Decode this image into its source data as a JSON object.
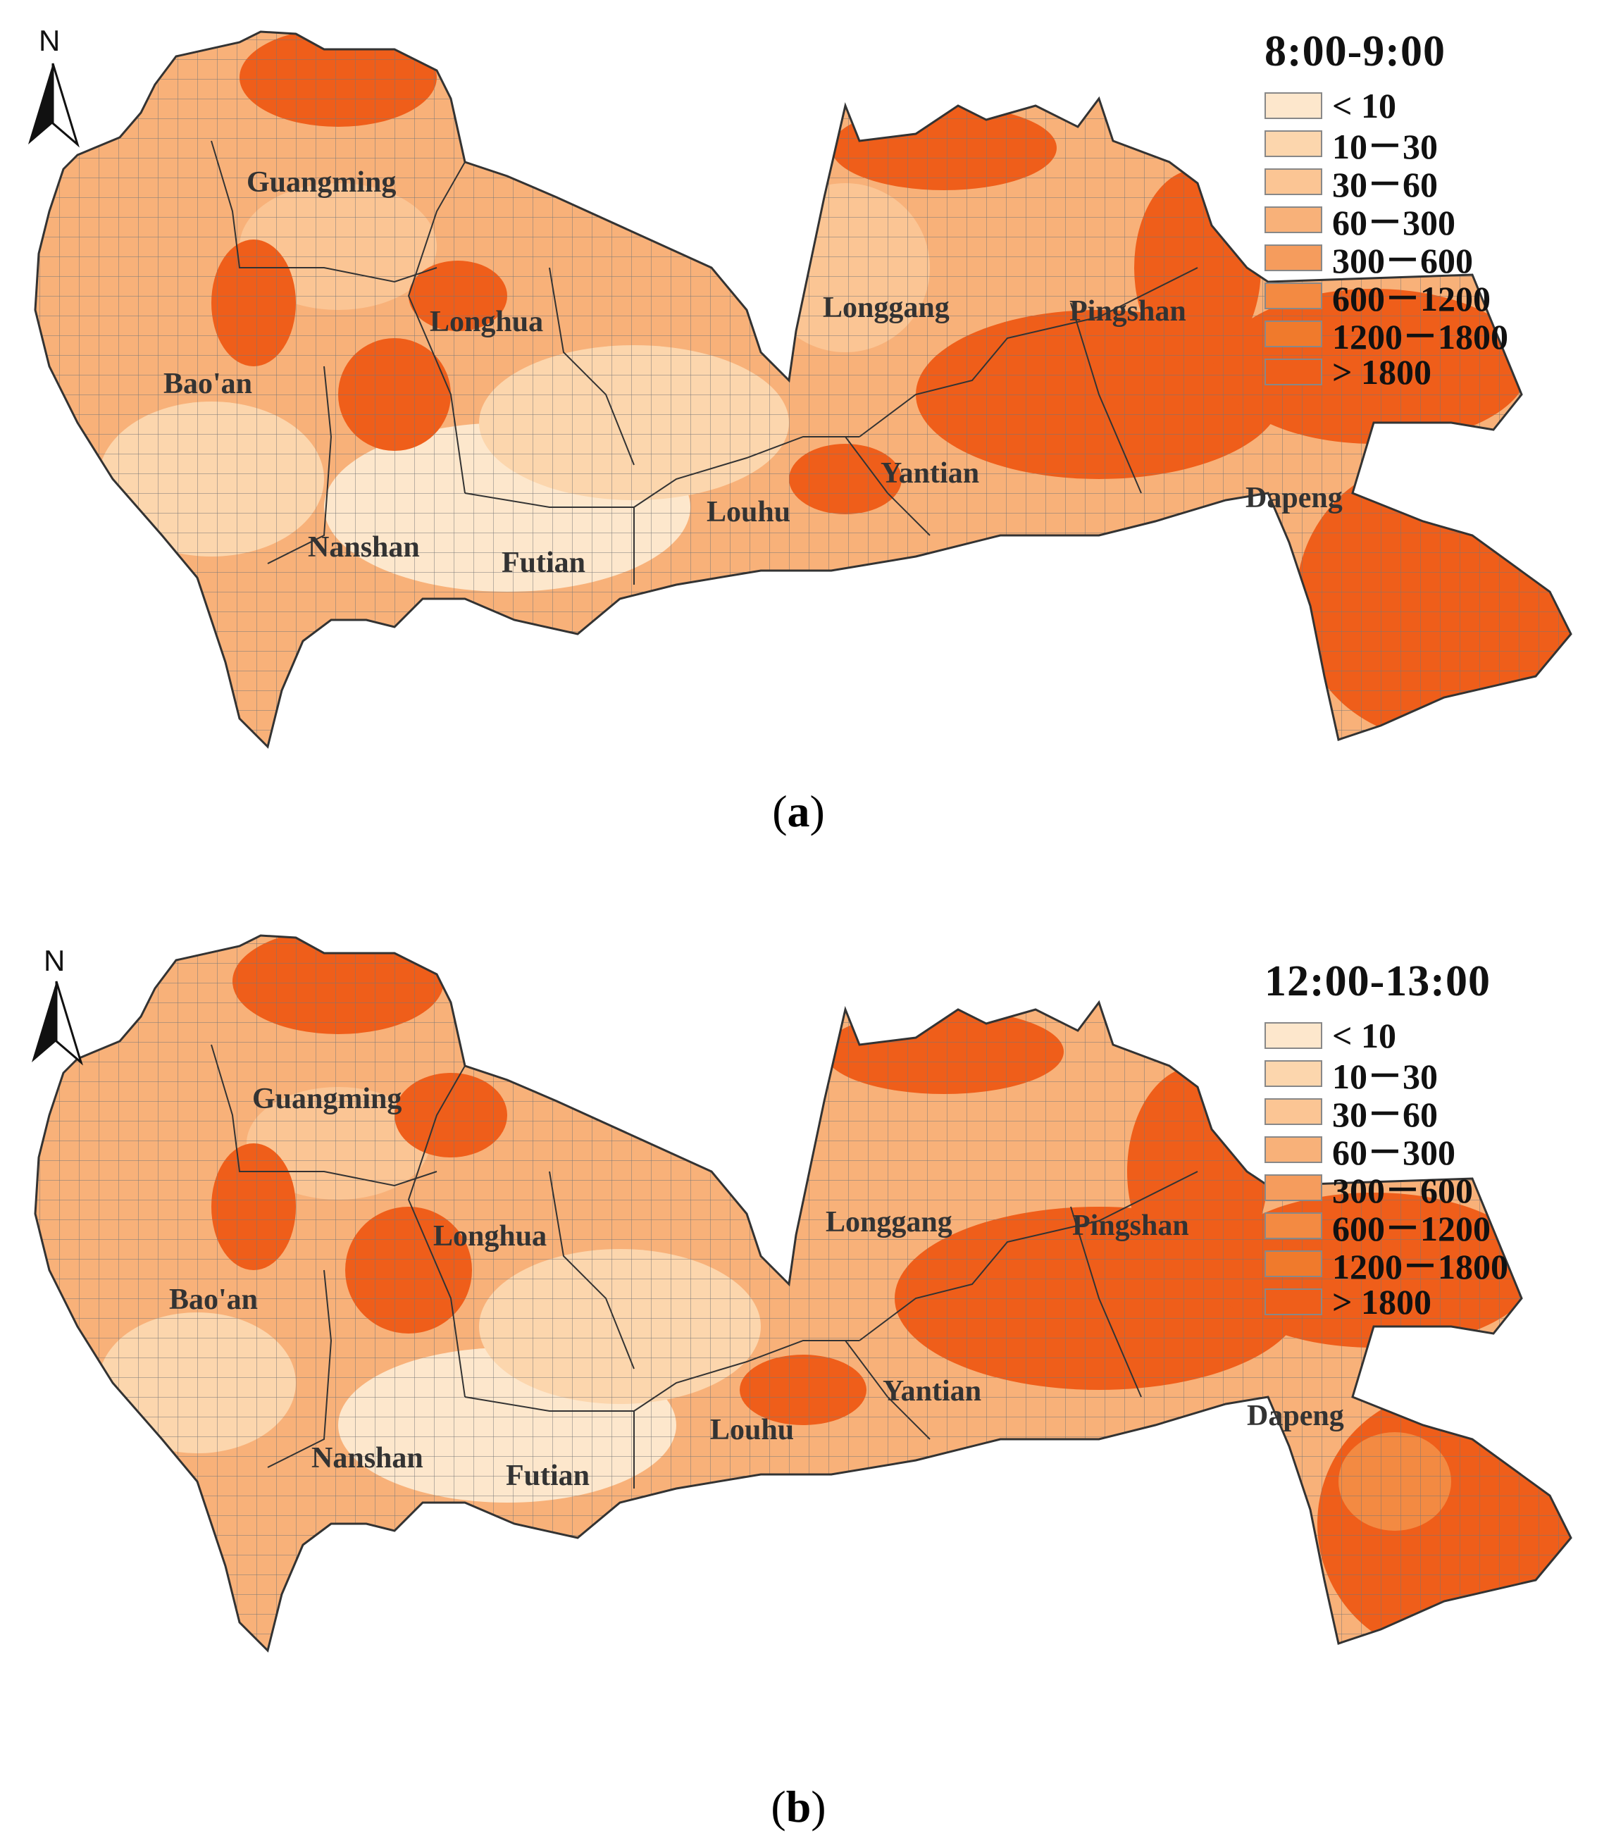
{
  "maps": [
    {
      "id": "a",
      "caption": "a",
      "time_window": "8:00-9:00",
      "north_label": "N",
      "district_labels": [
        "Guangming",
        "Longhua",
        "Bao'an",
        "Nanshan",
        "Futian",
        "Louhu",
        "Yantian",
        "Longgang",
        "Pingshan",
        "Dapeng"
      ]
    },
    {
      "id": "b",
      "caption": "b",
      "time_window": "12:00-13:00",
      "north_label": "N",
      "district_labels": [
        "Guangming",
        "Longhua",
        "Bao'an",
        "Nanshan",
        "Futian",
        "Louhu",
        "Yantian",
        "Longgang",
        "Pingshan",
        "Dapeng"
      ]
    }
  ],
  "legend": {
    "classes": [
      {
        "label": "< 10",
        "color": "#fde7cc"
      },
      {
        "label": "10－30",
        "color": "#fcd6ad"
      },
      {
        "label": "30－60",
        "color": "#fbc594"
      },
      {
        "label": "60－300",
        "color": "#f8b179"
      },
      {
        "label": "300－600",
        "color": "#f59c5d"
      },
      {
        "label": "600－1200",
        "color": "#f38a42"
      },
      {
        "label": "1200－1800",
        "color": "#f07a2c"
      },
      {
        "label": "> 1800",
        "color": "#ef5e1a"
      }
    ]
  }
}
